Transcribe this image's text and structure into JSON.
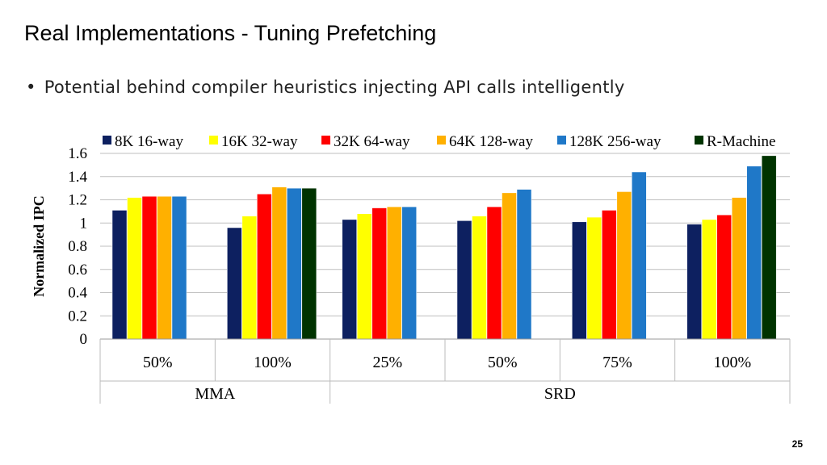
{
  "slide": {
    "title": "Real Implementations - Tuning Prefetching",
    "bullet": "Potential behind compiler heuristics injecting API calls intelligently",
    "page_number": "25"
  },
  "chart_data": {
    "type": "bar",
    "title": "",
    "xlabel": "",
    "ylabel": "Normalized IPC",
    "ylim": [
      0,
      1.6
    ],
    "y_ticks": [
      "0",
      "0.2",
      "0.4",
      "0.6",
      "0.8",
      "1",
      "1.2",
      "1.4",
      "1.6"
    ],
    "grid": true,
    "legend_position": "top",
    "categories": [
      "50%",
      "100%",
      "25%",
      "50%",
      "75%",
      "100%"
    ],
    "groups": [
      {
        "label": "MMA",
        "categories": 2
      },
      {
        "label": "SRD",
        "categories": 4
      }
    ],
    "series": [
      {
        "name": "8K 16-way",
        "color": "#0d2060",
        "values": [
          1.11,
          0.96,
          1.03,
          1.02,
          1.01,
          0.99
        ]
      },
      {
        "name": "16K 32-way",
        "color": "#ffff00",
        "values": [
          1.22,
          1.06,
          1.08,
          1.06,
          1.05,
          1.03
        ]
      },
      {
        "name": "32K 64-way",
        "color": "#ff0000",
        "values": [
          1.23,
          1.25,
          1.13,
          1.14,
          1.11,
          1.07
        ]
      },
      {
        "name": "64K 128-way",
        "color": "#ffb000",
        "values": [
          1.23,
          1.31,
          1.14,
          1.26,
          1.27,
          1.22
        ]
      },
      {
        "name": "128K 256-way",
        "color": "#1f78c8",
        "values": [
          1.23,
          1.3,
          1.14,
          1.29,
          1.44,
          1.49
        ]
      },
      {
        "name": "R-Machine",
        "color": "#003300",
        "values": [
          null,
          1.3,
          null,
          null,
          null,
          1.58
        ]
      }
    ]
  }
}
